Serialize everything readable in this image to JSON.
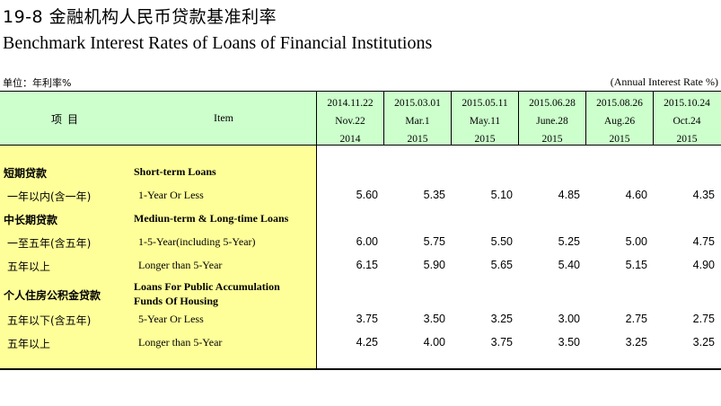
{
  "header": {
    "title_cn": "19-8  金融机构人民币贷款基准利率",
    "title_en": "Benchmark Interest Rates of Loans of Financial Institutions",
    "unit_cn": "单位：年利率%",
    "unit_en": "(Annual Interest Rate %)"
  },
  "columns": {
    "item_cn": "项目",
    "item_en": "Item",
    "dates": [
      {
        "l1": "2014.11.22",
        "l2": "Nov.22",
        "l3": "2014"
      },
      {
        "l1": "2015.03.01",
        "l2": "Mar.1",
        "l3": "2015"
      },
      {
        "l1": "2015.05.11",
        "l2": "May.11",
        "l3": "2015"
      },
      {
        "l1": "2015.06.28",
        "l2": "June.28",
        "l3": "2015"
      },
      {
        "l1": "2015.08.26",
        "l2": "Aug.26",
        "l3": "2015"
      },
      {
        "l1": "2015.10.24",
        "l2": "Oct.24",
        "l3": "2015"
      }
    ]
  },
  "rows": [
    {
      "cn": "短期贷款",
      "en": "Short-term Loans",
      "values": [
        "",
        "",
        "",
        "",
        "",
        ""
      ]
    },
    {
      "cn": "一年以内(含一年)",
      "en": "1-Year Or Less",
      "values": [
        "5.60",
        "5.35",
        "5.10",
        "4.85",
        "4.60",
        "4.35"
      ]
    },
    {
      "cn": "中长期贷款",
      "en": "Mediun-term & Long-time  Loans",
      "values": [
        "",
        "",
        "",
        "",
        "",
        ""
      ]
    },
    {
      "cn": "一至五年(含五年)",
      "en": "1-5-Year(including 5-Year)",
      "values": [
        "6.00",
        "5.75",
        "5.50",
        "5.25",
        "5.00",
        "4.75"
      ]
    },
    {
      "cn": "五年以上",
      "en": "Longer than 5-Year",
      "values": [
        "6.15",
        "5.90",
        "5.65",
        "5.40",
        "5.15",
        "4.90"
      ]
    },
    {
      "cn": "个人住房公积金贷款",
      "en_line1": "Loans For Public Accumulation",
      "en_line2": "Funds Of Housing",
      "values": [
        "",
        "",
        "",
        "",
        "",
        ""
      ]
    },
    {
      "cn": "五年以下(含五年)",
      "en": "5-Year Or Less",
      "values": [
        "3.75",
        "3.50",
        "3.25",
        "3.00",
        "2.75",
        "2.75"
      ]
    },
    {
      "cn": "五年以上",
      "en": "Longer than 5-Year",
      "values": [
        "4.25",
        "4.00",
        "3.75",
        "3.50",
        "3.25",
        "3.25"
      ]
    }
  ]
}
